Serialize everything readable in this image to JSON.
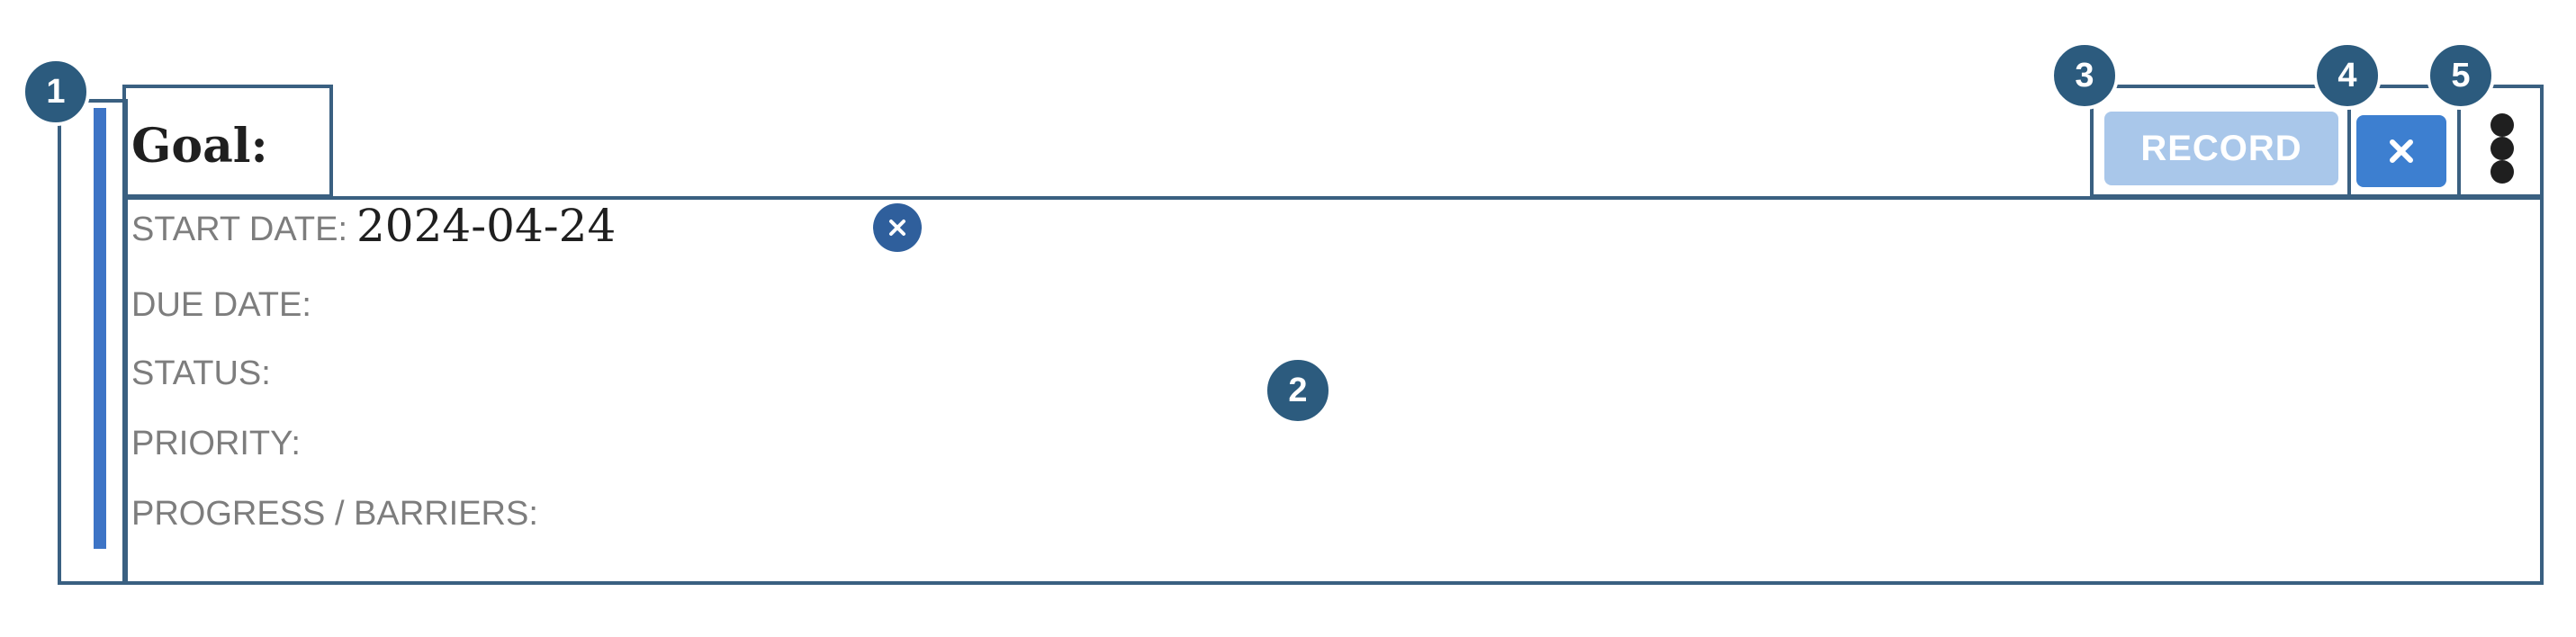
{
  "goal": {
    "title": "Goal:"
  },
  "fields": {
    "start_date_label": "START DATE:",
    "start_date_value": "2024-04-24",
    "due_date_label": "DUE DATE:",
    "status_label": "STATUS:",
    "priority_label": "PRIORITY:",
    "progress_label": "PROGRESS / BARRIERS:"
  },
  "toolbar": {
    "record_label": "RECORD"
  },
  "annotations": {
    "badge_1": "1",
    "badge_2": "2",
    "badge_3": "3",
    "badge_4": "4",
    "badge_5": "5"
  },
  "colors": {
    "accent": "#3d74c6",
    "outline": "#3a6081",
    "badge": "#2c5b7e",
    "record_disabled": "#a9c7ea",
    "close_button": "#3d7fd0"
  }
}
